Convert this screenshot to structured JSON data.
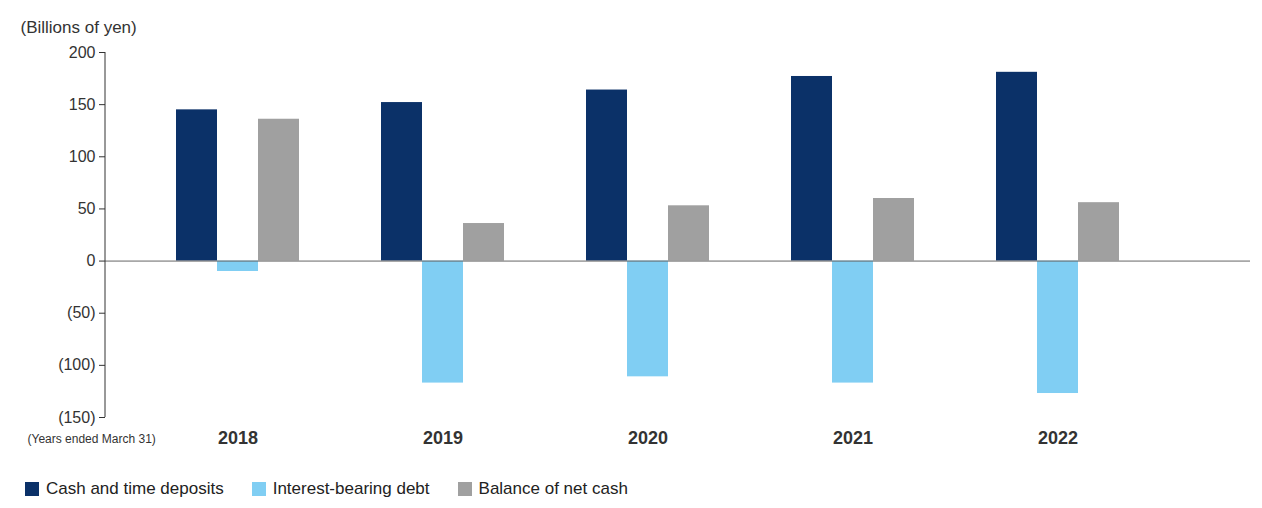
{
  "chart_data": {
    "type": "bar",
    "y_label": "(Billions of yen)",
    "x_label": "(Years ended March 31)",
    "categories": [
      "2018",
      "2019",
      "2020",
      "2021",
      "2022"
    ],
    "series": [
      {
        "name": "Cash and time deposits",
        "color": "#0b3168",
        "values": [
          145,
          152,
          164,
          177,
          181
        ]
      },
      {
        "name": "Interest-bearing debt",
        "color": "#80cef3",
        "values": [
          -10,
          -117,
          -111,
          -117,
          -127
        ]
      },
      {
        "name": "Balance of net cash",
        "color": "#a0a0a0",
        "values": [
          136,
          36,
          53,
          60,
          56
        ]
      }
    ],
    "ylim": [
      -150,
      200
    ],
    "yticks": [
      {
        "value": -150,
        "label": "(150)"
      },
      {
        "value": -100,
        "label": "(100)"
      },
      {
        "value": -50,
        "label": "(50)"
      },
      0,
      50,
      100,
      150,
      200
    ],
    "legend": "bottom"
  }
}
